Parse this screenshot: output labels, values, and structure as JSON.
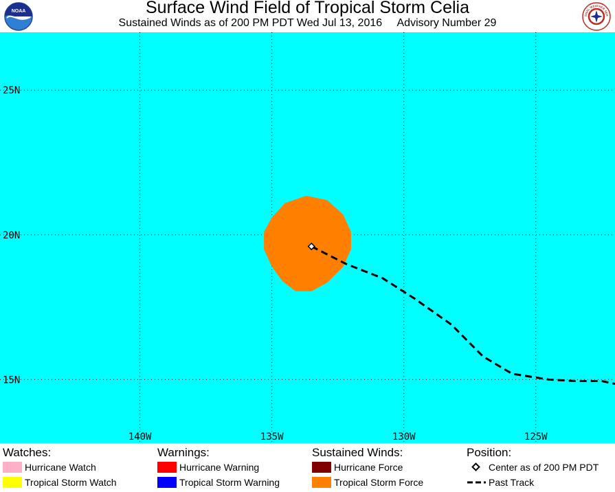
{
  "header": {
    "title": "Surface Wind Field of Tropical Storm Celia",
    "subtitle_left": "Sustained Winds as of 200 PM PDT Wed Jul 13, 2016",
    "subtitle_right": "Advisory Number 29",
    "left_logo_text": "NOAA",
    "right_logo_text": "NATIONAL WEATHER SERVICE"
  },
  "map": {
    "lat_range": [
      12.8,
      27.0
    ],
    "lon_range": [
      -145.3,
      -122.0
    ],
    "latitudes": [
      {
        "value": 25,
        "label": "25N"
      },
      {
        "value": 20,
        "label": "20N"
      },
      {
        "value": 15,
        "label": "15N"
      }
    ],
    "longitudes": [
      {
        "value": -140,
        "label": "140W"
      },
      {
        "value": -135,
        "label": "135W"
      },
      {
        "value": -130,
        "label": "130W"
      },
      {
        "value": -125,
        "label": "125W"
      }
    ],
    "center": {
      "lon": -133.5,
      "lat": 19.6
    },
    "tropical_storm_force_field": [
      {
        "lon": -133.7,
        "lat": 21.35
      },
      {
        "lon": -132.9,
        "lat": 21.2
      },
      {
        "lon": -132.3,
        "lat": 20.7
      },
      {
        "lon": -132.0,
        "lat": 20.1
      },
      {
        "lon": -132.0,
        "lat": 19.5
      },
      {
        "lon": -132.3,
        "lat": 18.9
      },
      {
        "lon": -132.9,
        "lat": 18.35
      },
      {
        "lon": -133.5,
        "lat": 18.05
      },
      {
        "lon": -134.1,
        "lat": 18.05
      },
      {
        "lon": -134.6,
        "lat": 18.4
      },
      {
        "lon": -135.0,
        "lat": 18.9
      },
      {
        "lon": -135.3,
        "lat": 19.5
      },
      {
        "lon": -135.3,
        "lat": 20.1
      },
      {
        "lon": -135.0,
        "lat": 20.6
      },
      {
        "lon": -134.5,
        "lat": 21.1
      }
    ],
    "past_track": [
      {
        "lon": -133.5,
        "lat": 19.6
      },
      {
        "lon": -132.2,
        "lat": 19.0
      },
      {
        "lon": -130.8,
        "lat": 18.5
      },
      {
        "lon": -129.6,
        "lat": 17.8
      },
      {
        "lon": -128.2,
        "lat": 16.9
      },
      {
        "lon": -127.0,
        "lat": 15.8
      },
      {
        "lon": -125.9,
        "lat": 15.2
      },
      {
        "lon": -124.5,
        "lat": 15.0
      },
      {
        "lon": -123.5,
        "lat": 14.95
      },
      {
        "lon": -122.5,
        "lat": 14.95
      },
      {
        "lon": -122.0,
        "lat": 14.85
      }
    ],
    "colors": {
      "ocean": "#00ffff",
      "tropical_storm_force": "#ff7f00",
      "track": "#000000",
      "grid": "#000000"
    }
  },
  "legend": {
    "watches": {
      "heading": "Watches:",
      "items": [
        {
          "label": "Hurricane Watch",
          "color": "#ffb0c8"
        },
        {
          "label": "Tropical Storm Watch",
          "color": "#ffff00"
        }
      ]
    },
    "warnings": {
      "heading": "Warnings:",
      "items": [
        {
          "label": "Hurricane Warning",
          "color": "#ff0000"
        },
        {
          "label": "Tropical Storm Warning",
          "color": "#0000ff"
        }
      ]
    },
    "winds": {
      "heading": "Sustained Winds:",
      "items": [
        {
          "label": "Hurricane Force",
          "color": "#800000"
        },
        {
          "label": "Tropical Storm Force",
          "color": "#ff7f00"
        }
      ]
    },
    "position": {
      "heading": "Position:",
      "items": [
        {
          "label": "Center as of 200 PM PDT",
          "icon": "diamond-icon"
        },
        {
          "label": "Past Track",
          "icon": "dashed-line-icon"
        }
      ]
    }
  }
}
